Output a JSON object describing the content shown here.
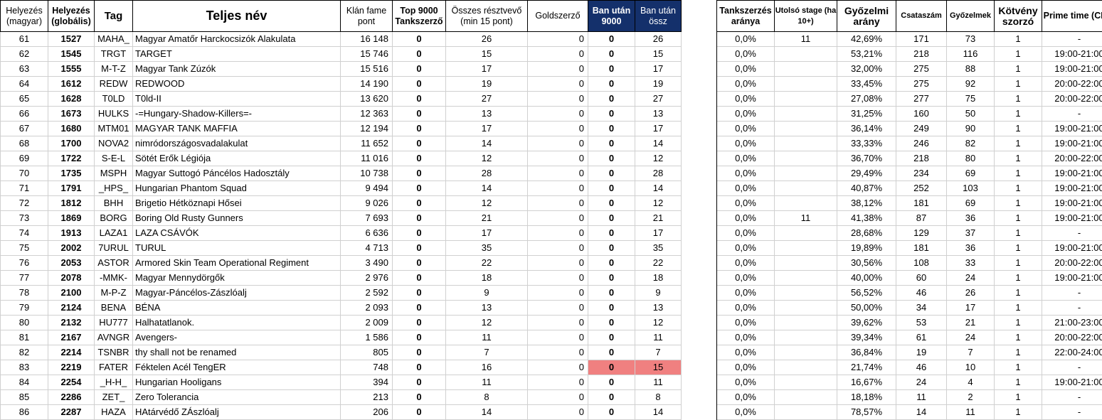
{
  "headers": {
    "rank_hu": "Helyezés (magyar)",
    "rank_global": "Helyezés (globális)",
    "tag": "Tag",
    "full_name": "Teljes név",
    "fame_points": "Klán fame pont",
    "top9000": "Top 9000 Tankszerző",
    "participants": "Összes résztvevő (min 15 pont)",
    "gold": "Goldszerző",
    "ban_9000": "Ban után 9000",
    "ban_total": "Ban után össz",
    "tank_rate": "Tankszerzés aránya",
    "last_stage": "Utolsó stage (ha 10+)",
    "win_rate": "Győzelmi arány",
    "battles": "Csataszám",
    "wins": "Győzelmek",
    "bond_mult": "Kötvény szorzó",
    "prime_time": "Prime time (CET)"
  },
  "rows": [
    {
      "rank_hu": "61",
      "rank_global": "1527",
      "tag": "MAHA_",
      "name": "Magyar Amatőr Harckocsizók Alakulata",
      "fame": "16 148",
      "top9000": "0",
      "participants": "26",
      "gold": "0",
      "ban9000": "0",
      "bantotal": "26",
      "tankrate": "0,0%",
      "stage": "11",
      "winrate": "42,69%",
      "battles": "171",
      "wins": "73",
      "bond": "1",
      "prime": "-",
      "hl": false
    },
    {
      "rank_hu": "62",
      "rank_global": "1545",
      "tag": "TRGT",
      "name": "TARGET",
      "fame": "15 746",
      "top9000": "0",
      "participants": "15",
      "gold": "0",
      "ban9000": "0",
      "bantotal": "15",
      "tankrate": "0,0%",
      "stage": "",
      "winrate": "53,21%",
      "battles": "218",
      "wins": "116",
      "bond": "1",
      "prime": "19:00-21:00",
      "hl": false
    },
    {
      "rank_hu": "63",
      "rank_global": "1555",
      "tag": "M-T-Z",
      "name": "Magyar Tank Zúzók",
      "fame": "15 516",
      "top9000": "0",
      "participants": "17",
      "gold": "0",
      "ban9000": "0",
      "bantotal": "17",
      "tankrate": "0,0%",
      "stage": "",
      "winrate": "32,00%",
      "battles": "275",
      "wins": "88",
      "bond": "1",
      "prime": "19:00-21:00",
      "hl": false
    },
    {
      "rank_hu": "64",
      "rank_global": "1612",
      "tag": "REDW",
      "name": "REDWOOD",
      "fame": "14 190",
      "top9000": "0",
      "participants": "19",
      "gold": "0",
      "ban9000": "0",
      "bantotal": "19",
      "tankrate": "0,0%",
      "stage": "",
      "winrate": "33,45%",
      "battles": "275",
      "wins": "92",
      "bond": "1",
      "prime": "20:00-22:00",
      "hl": false
    },
    {
      "rank_hu": "65",
      "rank_global": "1628",
      "tag": "T0LD",
      "name": "T0ld-II",
      "fame": "13 620",
      "top9000": "0",
      "participants": "27",
      "gold": "0",
      "ban9000": "0",
      "bantotal": "27",
      "tankrate": "0,0%",
      "stage": "",
      "winrate": "27,08%",
      "battles": "277",
      "wins": "75",
      "bond": "1",
      "prime": "20:00-22:00",
      "hl": false
    },
    {
      "rank_hu": "66",
      "rank_global": "1673",
      "tag": "HULKS",
      "name": "-=Hungary-Shadow-Killers=-",
      "fame": "12 363",
      "top9000": "0",
      "participants": "13",
      "gold": "0",
      "ban9000": "0",
      "bantotal": "13",
      "tankrate": "0,0%",
      "stage": "",
      "winrate": "31,25%",
      "battles": "160",
      "wins": "50",
      "bond": "1",
      "prime": "-",
      "hl": false
    },
    {
      "rank_hu": "67",
      "rank_global": "1680",
      "tag": "MTM01",
      "name": "MAGYAR TANK MAFFIA",
      "fame": "12 194",
      "top9000": "0",
      "participants": "17",
      "gold": "0",
      "ban9000": "0",
      "bantotal": "17",
      "tankrate": "0,0%",
      "stage": "",
      "winrate": "36,14%",
      "battles": "249",
      "wins": "90",
      "bond": "1",
      "prime": "19:00-21:00",
      "hl": false
    },
    {
      "rank_hu": "68",
      "rank_global": "1700",
      "tag": "NOVA2",
      "name": "nimródországosvadalakulat",
      "fame": "11 652",
      "top9000": "0",
      "participants": "14",
      "gold": "0",
      "ban9000": "0",
      "bantotal": "14",
      "tankrate": "0,0%",
      "stage": "",
      "winrate": "33,33%",
      "battles": "246",
      "wins": "82",
      "bond": "1",
      "prime": "19:00-21:00",
      "hl": false
    },
    {
      "rank_hu": "69",
      "rank_global": "1722",
      "tag": "S-E-L",
      "name": "Sötét Erők Légiója",
      "fame": "11 016",
      "top9000": "0",
      "participants": "12",
      "gold": "0",
      "ban9000": "0",
      "bantotal": "12",
      "tankrate": "0,0%",
      "stage": "",
      "winrate": "36,70%",
      "battles": "218",
      "wins": "80",
      "bond": "1",
      "prime": "20:00-22:00",
      "hl": false
    },
    {
      "rank_hu": "70",
      "rank_global": "1735",
      "tag": "MSPH",
      "name": "Magyar Suttogó Páncélos Hadosztály",
      "fame": "10 738",
      "top9000": "0",
      "participants": "28",
      "gold": "0",
      "ban9000": "0",
      "bantotal": "28",
      "tankrate": "0,0%",
      "stage": "",
      "winrate": "29,49%",
      "battles": "234",
      "wins": "69",
      "bond": "1",
      "prime": "19:00-21:00",
      "hl": false
    },
    {
      "rank_hu": "71",
      "rank_global": "1791",
      "tag": "_HPS_",
      "name": "Hungarian Phantom Squad",
      "fame": "9 494",
      "top9000": "0",
      "participants": "14",
      "gold": "0",
      "ban9000": "0",
      "bantotal": "14",
      "tankrate": "0,0%",
      "stage": "",
      "winrate": "40,87%",
      "battles": "252",
      "wins": "103",
      "bond": "1",
      "prime": "19:00-21:00",
      "hl": false
    },
    {
      "rank_hu": "72",
      "rank_global": "1812",
      "tag": "BHH",
      "name": "Brigetio Hétköznapi Hősei",
      "fame": "9 026",
      "top9000": "0",
      "participants": "12",
      "gold": "0",
      "ban9000": "0",
      "bantotal": "12",
      "tankrate": "0,0%",
      "stage": "",
      "winrate": "38,12%",
      "battles": "181",
      "wins": "69",
      "bond": "1",
      "prime": "19:00-21:00",
      "hl": false
    },
    {
      "rank_hu": "73",
      "rank_global": "1869",
      "tag": "BORG",
      "name": "Boring Old Rusty Gunners",
      "fame": "7 693",
      "top9000": "0",
      "participants": "21",
      "gold": "0",
      "ban9000": "0",
      "bantotal": "21",
      "tankrate": "0,0%",
      "stage": "11",
      "winrate": "41,38%",
      "battles": "87",
      "wins": "36",
      "bond": "1",
      "prime": "19:00-21:00",
      "hl": false
    },
    {
      "rank_hu": "74",
      "rank_global": "1913",
      "tag": "LAZA1",
      "name": "LAZA CSÁVÓK",
      "fame": "6 636",
      "top9000": "0",
      "participants": "17",
      "gold": "0",
      "ban9000": "0",
      "bantotal": "17",
      "tankrate": "0,0%",
      "stage": "",
      "winrate": "28,68%",
      "battles": "129",
      "wins": "37",
      "bond": "1",
      "prime": "-",
      "hl": false
    },
    {
      "rank_hu": "75",
      "rank_global": "2002",
      "tag": "7URUL",
      "name": "TURUL",
      "fame": "4 713",
      "top9000": "0",
      "participants": "35",
      "gold": "0",
      "ban9000": "0",
      "bantotal": "35",
      "tankrate": "0,0%",
      "stage": "",
      "winrate": "19,89%",
      "battles": "181",
      "wins": "36",
      "bond": "1",
      "prime": "19:00-21:00",
      "hl": false
    },
    {
      "rank_hu": "76",
      "rank_global": "2053",
      "tag": "ASTOR",
      "name": "Armored Skin Team Operational Regiment",
      "fame": "3 490",
      "top9000": "0",
      "participants": "22",
      "gold": "0",
      "ban9000": "0",
      "bantotal": "22",
      "tankrate": "0,0%",
      "stage": "",
      "winrate": "30,56%",
      "battles": "108",
      "wins": "33",
      "bond": "1",
      "prime": "20:00-22:00",
      "hl": false
    },
    {
      "rank_hu": "77",
      "rank_global": "2078",
      "tag": "-MMK-",
      "name": "Magyar Mennydörgők",
      "fame": "2 976",
      "top9000": "0",
      "participants": "18",
      "gold": "0",
      "ban9000": "0",
      "bantotal": "18",
      "tankrate": "0,0%",
      "stage": "",
      "winrate": "40,00%",
      "battles": "60",
      "wins": "24",
      "bond": "1",
      "prime": "19:00-21:00",
      "hl": false
    },
    {
      "rank_hu": "78",
      "rank_global": "2100",
      "tag": "M-P-Z",
      "name": "Magyar-Páncélos-Zászlóalj",
      "fame": "2 592",
      "top9000": "0",
      "participants": "9",
      "gold": "0",
      "ban9000": "0",
      "bantotal": "9",
      "tankrate": "0,0%",
      "stage": "",
      "winrate": "56,52%",
      "battles": "46",
      "wins": "26",
      "bond": "1",
      "prime": "-",
      "hl": false
    },
    {
      "rank_hu": "79",
      "rank_global": "2124",
      "tag": "BENA",
      "name": "BÉNA",
      "fame": "2 093",
      "top9000": "0",
      "participants": "13",
      "gold": "0",
      "ban9000": "0",
      "bantotal": "13",
      "tankrate": "0,0%",
      "stage": "",
      "winrate": "50,00%",
      "battles": "34",
      "wins": "17",
      "bond": "1",
      "prime": "-",
      "hl": false
    },
    {
      "rank_hu": "80",
      "rank_global": "2132",
      "tag": "HU777",
      "name": "Halhatatlanok.",
      "fame": "2 009",
      "top9000": "0",
      "participants": "12",
      "gold": "0",
      "ban9000": "0",
      "bantotal": "12",
      "tankrate": "0,0%",
      "stage": "",
      "winrate": "39,62%",
      "battles": "53",
      "wins": "21",
      "bond": "1",
      "prime": "21:00-23:00",
      "hl": false
    },
    {
      "rank_hu": "81",
      "rank_global": "2167",
      "tag": "AVNGR",
      "name": "Avengers-",
      "fame": "1 586",
      "top9000": "0",
      "participants": "11",
      "gold": "0",
      "ban9000": "0",
      "bantotal": "11",
      "tankrate": "0,0%",
      "stage": "",
      "winrate": "39,34%",
      "battles": "61",
      "wins": "24",
      "bond": "1",
      "prime": "20:00-22:00",
      "hl": false
    },
    {
      "rank_hu": "82",
      "rank_global": "2214",
      "tag": "TSNBR",
      "name": "thy shall not be renamed",
      "fame": "805",
      "top9000": "0",
      "participants": "7",
      "gold": "0",
      "ban9000": "0",
      "bantotal": "7",
      "tankrate": "0,0%",
      "stage": "",
      "winrate": "36,84%",
      "battles": "19",
      "wins": "7",
      "bond": "1",
      "prime": "22:00-24:00",
      "hl": false
    },
    {
      "rank_hu": "83",
      "rank_global": "2219",
      "tag": "FATER",
      "name": "Féktelen Acél TengER",
      "fame": "748",
      "top9000": "0",
      "participants": "16",
      "gold": "0",
      "ban9000": "0",
      "bantotal": "15",
      "tankrate": "0,0%",
      "stage": "",
      "winrate": "21,74%",
      "battles": "46",
      "wins": "10",
      "bond": "1",
      "prime": "-",
      "hl": true
    },
    {
      "rank_hu": "84",
      "rank_global": "2254",
      "tag": "_H-H_",
      "name": "Hungarian Hooligans",
      "fame": "394",
      "top9000": "0",
      "participants": "11",
      "gold": "0",
      "ban9000": "0",
      "bantotal": "11",
      "tankrate": "0,0%",
      "stage": "",
      "winrate": "16,67%",
      "battles": "24",
      "wins": "4",
      "bond": "1",
      "prime": "19:00-21:00",
      "hl": false
    },
    {
      "rank_hu": "85",
      "rank_global": "2286",
      "tag": "ZET_",
      "name": "Zero Tolerancia",
      "fame": "213",
      "top9000": "0",
      "participants": "8",
      "gold": "0",
      "ban9000": "0",
      "bantotal": "8",
      "tankrate": "0,0%",
      "stage": "",
      "winrate": "18,18%",
      "battles": "11",
      "wins": "2",
      "bond": "1",
      "prime": "-",
      "hl": false
    },
    {
      "rank_hu": "86",
      "rank_global": "2287",
      "tag": "HAZA",
      "name": "HAtárvédő ZÁszlóalj",
      "fame": "206",
      "top9000": "0",
      "participants": "14",
      "gold": "0",
      "ban9000": "0",
      "bantotal": "14",
      "tankrate": "0,0%",
      "stage": "",
      "winrate": "78,57%",
      "battles": "14",
      "wins": "11",
      "bond": "1",
      "prime": "-",
      "hl": false
    }
  ],
  "colors": {
    "header_navy": "#14306b",
    "highlight_red": "#f08080"
  }
}
